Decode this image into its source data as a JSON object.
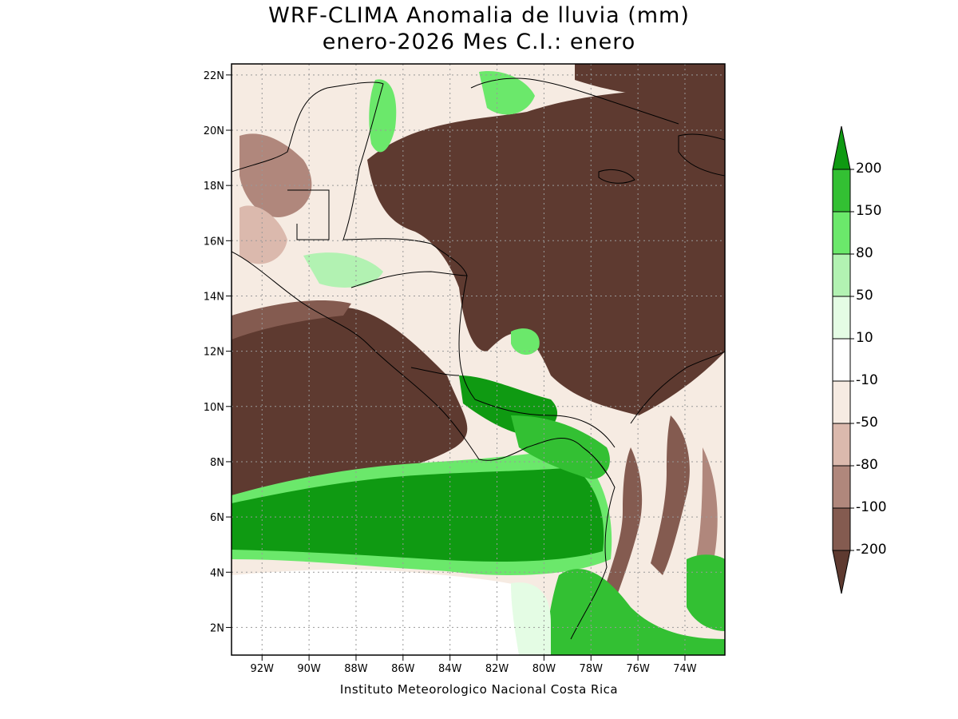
{
  "header": {
    "title_line1": "WRF-CLIMA Anomalia de lluvia (mm)",
    "title_line2": "enero-2026 Mes C.I.: enero"
  },
  "footer": {
    "credit": "Instituto Meteorologico Nacional Costa Rica"
  },
  "map": {
    "lon_range": [
      -93.3,
      -72.3
    ],
    "lat_range": [
      1.0,
      22.4
    ],
    "lon_ticks": [
      {
        "value": -92,
        "label": "92W"
      },
      {
        "value": -90,
        "label": "90W"
      },
      {
        "value": -88,
        "label": "88W"
      },
      {
        "value": -86,
        "label": "86W"
      },
      {
        "value": -84,
        "label": "84W"
      },
      {
        "value": -82,
        "label": "82W"
      },
      {
        "value": -80,
        "label": "80W"
      },
      {
        "value": -78,
        "label": "78W"
      },
      {
        "value": -76,
        "label": "76W"
      },
      {
        "value": -74,
        "label": "74W"
      }
    ],
    "lat_ticks": [
      {
        "value": 2,
        "label": "2N"
      },
      {
        "value": 4,
        "label": "4N"
      },
      {
        "value": 6,
        "label": "6N"
      },
      {
        "value": 8,
        "label": "8N"
      },
      {
        "value": 10,
        "label": "10N"
      },
      {
        "value": 12,
        "label": "12N"
      },
      {
        "value": 14,
        "label": "14N"
      },
      {
        "value": 16,
        "label": "16N"
      },
      {
        "value": 18,
        "label": "18N"
      },
      {
        "value": 20,
        "label": "20N"
      },
      {
        "value": 22,
        "label": "22N"
      }
    ],
    "grid": true
  },
  "colorbar": {
    "labels": [
      "200",
      "150",
      "80",
      "50",
      "10",
      "-10",
      "-50",
      "-80",
      "-100",
      "-200"
    ],
    "colors": [
      "#0f9a12",
      "#33c033",
      "#6be86b",
      "#b2f2b2",
      "#e4fce4",
      "#ffffff",
      "#f6ebe2",
      "#dbb9ad",
      "#b0877c",
      "#845b50",
      "#5e3a30"
    ]
  },
  "palette": {
    "dry_extreme": "#5e3a30",
    "dry_strong": "#845b50",
    "dry_moderate": "#b0877c",
    "dry_light": "#dbb9ad",
    "dry_slight": "#f6ebe2",
    "neutral": "#ffffff",
    "wet_slight": "#e4fce4",
    "wet_light": "#b2f2b2",
    "wet_moderate": "#6be86b",
    "wet_strong": "#33c033",
    "wet_extreme": "#0f9a12"
  }
}
